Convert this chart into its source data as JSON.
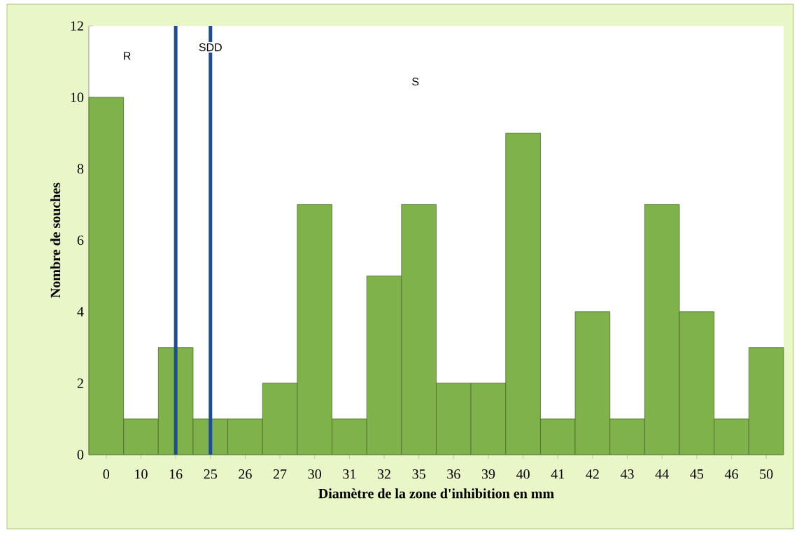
{
  "chart_data": {
    "type": "bar",
    "xlabel": "Diamètre de la zone d'inhibition en mm",
    "ylabel": "Nombre de souches",
    "categories": [
      "0",
      "10",
      "16",
      "25",
      "26",
      "27",
      "30",
      "31",
      "32",
      "35",
      "36",
      "39",
      "40",
      "41",
      "42",
      "43",
      "44",
      "45",
      "46",
      "50"
    ],
    "values": [
      10,
      1,
      3,
      1,
      1,
      2,
      7,
      1,
      5,
      7,
      2,
      2,
      9,
      1,
      4,
      1,
      7,
      4,
      1,
      3
    ],
    "color": "#7fb24a",
    "ylim": [
      0,
      12
    ],
    "yticks": [
      0,
      2,
      4,
      6,
      8,
      10,
      12
    ],
    "grid": false,
    "ref_lines": [
      {
        "axis": "x",
        "value": "16",
        "color": "#1f4e8c"
      },
      {
        "axis": "x",
        "value": "25",
        "color": "#1f4e8c"
      }
    ],
    "annotations": [
      "R",
      "SDD",
      "S"
    ]
  }
}
